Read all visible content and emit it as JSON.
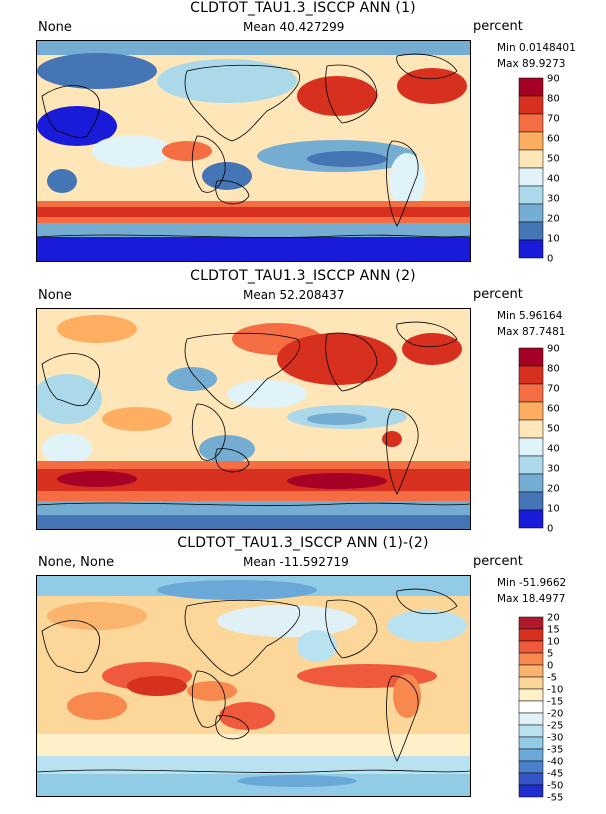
{
  "panels": [
    {
      "title": "CLDTOT_TAU1.3_ISCCP ANN (1)",
      "case": "None",
      "mean": "Mean 40.427299",
      "units": "percent",
      "min": "Min 0.0148401",
      "max": "Max 89.9273",
      "colorbar": {
        "labels": [
          "90",
          "80",
          "70",
          "60",
          "50",
          "40",
          "30",
          "20",
          "10",
          "0"
        ],
        "colors": [
          "#a50026",
          "#d7301f",
          "#f46d43",
          "#fdae61",
          "#fee6b8",
          "#e0f3f8",
          "#abd9e9",
          "#74add1",
          "#4575b4",
          "#1a1ad9"
        ]
      }
    },
    {
      "title": "CLDTOT_TAU1.3_ISCCP ANN (2)",
      "case": "None",
      "mean": "Mean 52.208437",
      "units": "percent",
      "min": "Min 5.96164",
      "max": "Max 87.7481",
      "colorbar": {
        "labels": [
          "90",
          "80",
          "70",
          "60",
          "50",
          "40",
          "30",
          "20",
          "10",
          "0"
        ],
        "colors": [
          "#a50026",
          "#d7301f",
          "#f46d43",
          "#fdae61",
          "#fee6b8",
          "#e0f3f8",
          "#abd9e9",
          "#74add1",
          "#4575b4",
          "#1a1ad9"
        ]
      }
    },
    {
      "title": "CLDTOT_TAU1.3_ISCCP ANN (1)-(2)",
      "case": "None, None",
      "mean": "Mean -11.592719",
      "units": "percent",
      "min": "Min -51.9662",
      "max": "Max 18.4977",
      "colorbar": {
        "labels": [
          "20",
          "15",
          "10",
          "5",
          "0",
          "-5",
          "-10",
          "-15",
          "-20",
          "-25",
          "-30",
          "-35",
          "-40",
          "-45",
          "-50",
          "-55"
        ],
        "colors": [
          "#b2182b",
          "#d6301f",
          "#ef5a3c",
          "#f7894f",
          "#fbb46e",
          "#fdd79a",
          "#fff0c8",
          "#ffffff",
          "#dff1f7",
          "#b9e2f0",
          "#91cbe6",
          "#6aa8d8",
          "#4a80cc",
          "#3355c8",
          "#1f2dcc"
        ]
      }
    }
  ]
}
